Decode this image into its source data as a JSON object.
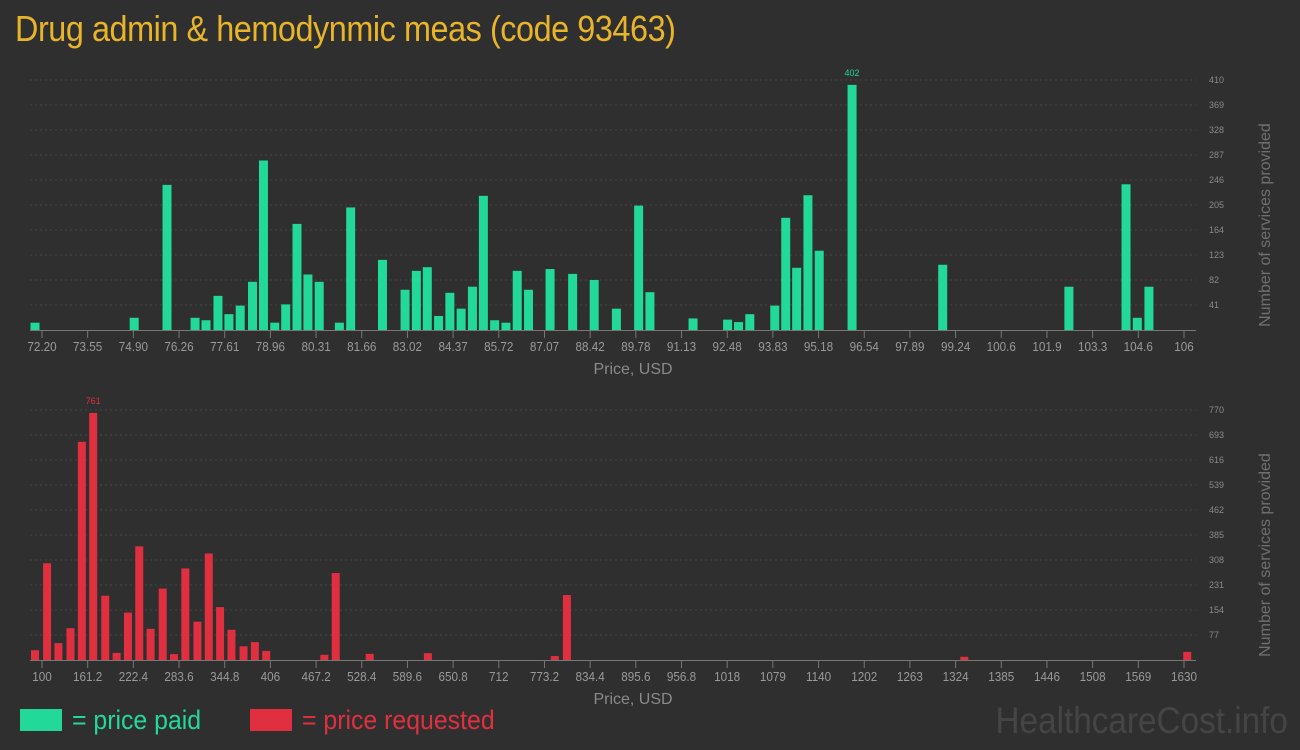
{
  "title": "Drug admin & hemodynmic meas (code 93463)",
  "colors": {
    "paid": "#22d999",
    "requested": "#e03040",
    "title": "#e8b52a",
    "background": "#2f2f2f"
  },
  "legend": {
    "paid_label": "= price paid",
    "requested_label": "= price requested"
  },
  "watermark": "HealthcareCost.info",
  "chart_data": [
    {
      "type": "bar",
      "series_name": "price paid",
      "xlabel": "Price, USD",
      "ylabel": "Number of services provided",
      "xlim": [
        72.2,
        106.0
      ],
      "ylim": [
        0,
        410
      ],
      "x_ticks": [
        "72.20",
        "73.55",
        "74.90",
        "76.26",
        "77.61",
        "78.96",
        "80.31",
        "81.66",
        "83.02",
        "84.37",
        "85.72",
        "87.07",
        "88.42",
        "89.78",
        "91.13",
        "92.48",
        "93.83",
        "95.18",
        "96.54",
        "97.89",
        "99.24",
        "100.6",
        "101.9",
        "103.3",
        "104.6",
        "106"
      ],
      "y_ticks": [
        "41",
        "82",
        "123",
        "164",
        "205",
        "246",
        "287",
        "328",
        "369",
        "410"
      ],
      "max_label": "402",
      "bars": [
        {
          "x": 72.2,
          "v": 12
        },
        {
          "x": 75.1,
          "v": 20
        },
        {
          "x": 76.06,
          "v": 238
        },
        {
          "x": 76.88,
          "v": 20
        },
        {
          "x": 77.2,
          "v": 16
        },
        {
          "x": 77.55,
          "v": 56
        },
        {
          "x": 77.87,
          "v": 26
        },
        {
          "x": 78.2,
          "v": 40
        },
        {
          "x": 78.56,
          "v": 79
        },
        {
          "x": 78.88,
          "v": 278
        },
        {
          "x": 79.21,
          "v": 12
        },
        {
          "x": 79.53,
          "v": 42
        },
        {
          "x": 79.86,
          "v": 174
        },
        {
          "x": 80.18,
          "v": 91
        },
        {
          "x": 80.51,
          "v": 79
        },
        {
          "x": 81.1,
          "v": 12
        },
        {
          "x": 81.43,
          "v": 201
        },
        {
          "x": 82.36,
          "v": 115
        },
        {
          "x": 83.02,
          "v": 66
        },
        {
          "x": 83.35,
          "v": 97
        },
        {
          "x": 83.67,
          "v": 103
        },
        {
          "x": 84.0,
          "v": 23
        },
        {
          "x": 84.33,
          "v": 61
        },
        {
          "x": 84.66,
          "v": 35
        },
        {
          "x": 84.99,
          "v": 71
        },
        {
          "x": 85.31,
          "v": 220
        },
        {
          "x": 85.64,
          "v": 16
        },
        {
          "x": 85.97,
          "v": 12
        },
        {
          "x": 86.3,
          "v": 97
        },
        {
          "x": 86.63,
          "v": 66
        },
        {
          "x": 87.26,
          "v": 100
        },
        {
          "x": 87.92,
          "v": 92
        },
        {
          "x": 88.55,
          "v": 82
        },
        {
          "x": 89.2,
          "v": 35
        },
        {
          "x": 89.85,
          "v": 204
        },
        {
          "x": 90.18,
          "v": 62
        },
        {
          "x": 91.44,
          "v": 19
        },
        {
          "x": 92.45,
          "v": 17
        },
        {
          "x": 92.77,
          "v": 13
        },
        {
          "x": 93.1,
          "v": 26
        },
        {
          "x": 93.83,
          "v": 40
        },
        {
          "x": 94.15,
          "v": 184
        },
        {
          "x": 94.47,
          "v": 102
        },
        {
          "x": 94.8,
          "v": 221
        },
        {
          "x": 95.13,
          "v": 130
        },
        {
          "x": 96.09,
          "v": 402
        },
        {
          "x": 98.74,
          "v": 107
        },
        {
          "x": 102.43,
          "v": 71
        },
        {
          "x": 104.1,
          "v": 239
        },
        {
          "x": 104.43,
          "v": 20
        },
        {
          "x": 104.77,
          "v": 71
        }
      ]
    },
    {
      "type": "bar",
      "series_name": "price requested",
      "xlabel": "Price, USD",
      "ylabel": "Number of services provided",
      "xlim": [
        100,
        1630
      ],
      "ylim": [
        0,
        770
      ],
      "x_ticks": [
        "100",
        "161.2",
        "222.4",
        "283.6",
        "344.8",
        "406",
        "467.2",
        "528.4",
        "589.6",
        "650.8",
        "712",
        "773.2",
        "834.4",
        "895.6",
        "956.8",
        "1018",
        "1079",
        "1140",
        "1202",
        "1263",
        "1324",
        "1385",
        "1446",
        "1508",
        "1569",
        "1630"
      ],
      "y_ticks": [
        "77",
        "154",
        "231",
        "308",
        "385",
        "462",
        "539",
        "616",
        "693",
        "770"
      ],
      "max_label": "761",
      "bars": [
        {
          "x": 100,
          "v": 30
        },
        {
          "x": 116,
          "v": 298
        },
        {
          "x": 131,
          "v": 52
        },
        {
          "x": 147,
          "v": 98
        },
        {
          "x": 162,
          "v": 672
        },
        {
          "x": 177,
          "v": 761
        },
        {
          "x": 193,
          "v": 198
        },
        {
          "x": 208,
          "v": 22
        },
        {
          "x": 223,
          "v": 146
        },
        {
          "x": 238,
          "v": 350
        },
        {
          "x": 253,
          "v": 96
        },
        {
          "x": 269,
          "v": 220
        },
        {
          "x": 284,
          "v": 18
        },
        {
          "x": 299,
          "v": 282
        },
        {
          "x": 315,
          "v": 118
        },
        {
          "x": 330,
          "v": 328
        },
        {
          "x": 345,
          "v": 163
        },
        {
          "x": 360,
          "v": 93
        },
        {
          "x": 376,
          "v": 42
        },
        {
          "x": 391,
          "v": 55
        },
        {
          "x": 406,
          "v": 28
        },
        {
          "x": 483,
          "v": 16
        },
        {
          "x": 498,
          "v": 268
        },
        {
          "x": 543,
          "v": 19
        },
        {
          "x": 620,
          "v": 21
        },
        {
          "x": 788,
          "v": 12
        },
        {
          "x": 804,
          "v": 200
        },
        {
          "x": 1330,
          "v": 10
        },
        {
          "x": 1625,
          "v": 25
        }
      ]
    }
  ]
}
